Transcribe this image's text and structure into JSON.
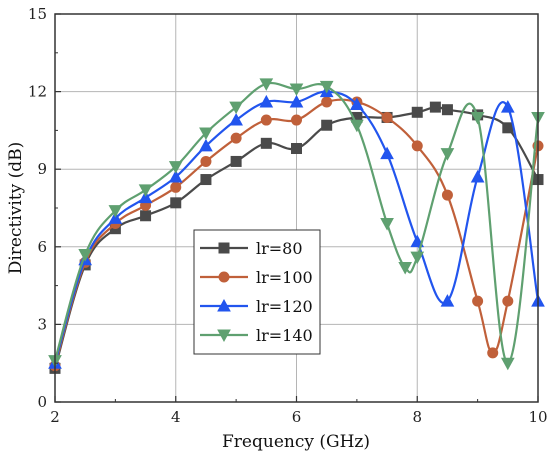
{
  "chart_data": {
    "type": "line",
    "xlabel": "Frequency (GHz)",
    "ylabel": "Directivity (dB)",
    "xlim": [
      2,
      10
    ],
    "ylim": [
      0,
      15
    ],
    "xticks": [
      2,
      4,
      6,
      8,
      10
    ],
    "yticks": [
      0,
      3,
      6,
      9,
      12,
      15
    ],
    "grid": true,
    "legend_position": "lower-left",
    "series": [
      {
        "name": "lr=80",
        "color": "#4a4a4a",
        "marker": "square",
        "x": [
          2,
          2.5,
          3,
          3.5,
          4,
          4.5,
          5,
          5.5,
          6,
          6.5,
          7,
          7.5,
          8,
          8.3,
          8.5,
          9,
          9.5,
          10
        ],
        "y": [
          1.3,
          5.3,
          6.7,
          7.2,
          7.7,
          8.6,
          9.3,
          10.0,
          9.8,
          10.7,
          11.0,
          11.0,
          11.2,
          11.4,
          11.3,
          11.1,
          10.6,
          8.6
        ]
      },
      {
        "name": "lr=100",
        "color": "#c0603a",
        "marker": "circle",
        "x": [
          2,
          2.5,
          3,
          3.5,
          4,
          4.5,
          5,
          5.5,
          6,
          6.5,
          7,
          7.5,
          8,
          8.5,
          9,
          9.25,
          9.5,
          10
        ],
        "y": [
          1.4,
          5.4,
          6.9,
          7.6,
          8.3,
          9.3,
          10.2,
          10.9,
          10.9,
          11.6,
          11.6,
          11.0,
          9.9,
          8.0,
          3.9,
          1.9,
          3.9,
          9.9
        ]
      },
      {
        "name": "lr=120",
        "color": "#2255ee",
        "marker": "triangle-up",
        "x": [
          2,
          2.5,
          3,
          3.5,
          4,
          4.5,
          5,
          5.5,
          6,
          6.5,
          7,
          7.5,
          8,
          8.5,
          9,
          9.5,
          10
        ],
        "y": [
          1.5,
          5.5,
          7.1,
          7.9,
          8.7,
          9.9,
          10.9,
          11.6,
          11.6,
          12.0,
          11.5,
          9.6,
          6.2,
          3.9,
          8.7,
          11.4,
          3.9
        ]
      },
      {
        "name": "lr=140",
        "color": "#5fa070",
        "marker": "triangle-down",
        "x": [
          2,
          2.5,
          3,
          3.5,
          4,
          4.5,
          5,
          5.5,
          6,
          6.5,
          7,
          7.5,
          7.8,
          8,
          8.5,
          9,
          9.5,
          10
        ],
        "y": [
          1.6,
          5.7,
          7.4,
          8.2,
          9.1,
          10.4,
          11.4,
          12.3,
          12.1,
          12.2,
          10.7,
          6.9,
          5.2,
          5.6,
          9.6,
          11.0,
          1.5,
          11.0
        ]
      }
    ]
  }
}
